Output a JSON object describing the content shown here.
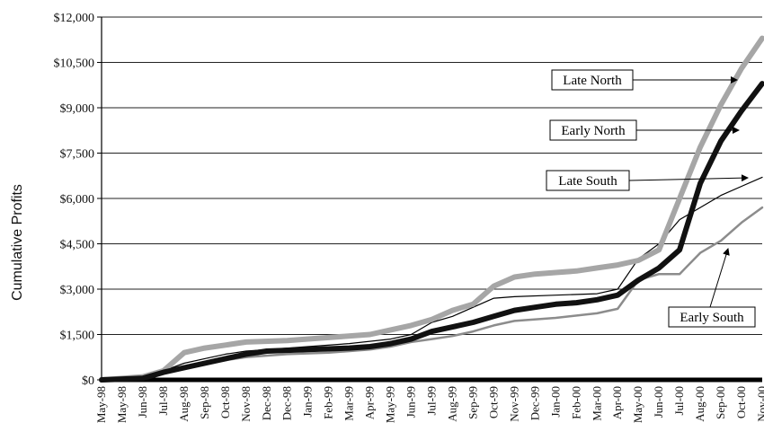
{
  "chart_data": {
    "type": "line",
    "title": "",
    "xlabel": "",
    "ylabel": "Cumulative Profits",
    "ylim": [
      0,
      12000
    ],
    "y_ticks": [
      {
        "value": 0,
        "label": "$0"
      },
      {
        "value": 1500,
        "label": "$1,500"
      },
      {
        "value": 3000,
        "label": "$3,000"
      },
      {
        "value": 4500,
        "label": "$4,500"
      },
      {
        "value": 6000,
        "label": "$6,000"
      },
      {
        "value": 7500,
        "label": "$7,500"
      },
      {
        "value": 9000,
        "label": "$9,000"
      },
      {
        "value": 10500,
        "label": "$10,500"
      },
      {
        "value": 12000,
        "label": "$12,000"
      }
    ],
    "grid": "horizontal",
    "x_ticks": [
      "May-98",
      "May-98",
      "Jun-98",
      "Jul-98",
      "Aug-98",
      "Sep-98",
      "Oct-98",
      "Nov-98",
      "Dec-98",
      "Dec-98",
      "Jan-99",
      "Feb-99",
      "Mar-99",
      "Apr-99",
      "May-99",
      "Jun-99",
      "Jul-99",
      "Aug-99",
      "Sep-99",
      "Oct-99",
      "Nov-99",
      "Dec-99",
      "Jan-00",
      "Feb-00",
      "Mar-00",
      "Apr-00",
      "May-00",
      "Jun-00",
      "Jul-00",
      "Aug-00",
      "Sep-00",
      "Oct-00",
      "Nov-00"
    ],
    "series": [
      {
        "name": "Late North",
        "color": "#a6a6a6",
        "style": "thick-gray",
        "points": [
          [
            0,
            0
          ],
          [
            2,
            100
          ],
          [
            3,
            300
          ],
          [
            4,
            900
          ],
          [
            5,
            1050
          ],
          [
            6,
            1150
          ],
          [
            7,
            1250
          ],
          [
            9,
            1300
          ],
          [
            11,
            1400
          ],
          [
            13,
            1500
          ],
          [
            14,
            1650
          ],
          [
            15,
            1800
          ],
          [
            16,
            2000
          ],
          [
            17,
            2300
          ],
          [
            18,
            2500
          ],
          [
            19,
            3100
          ],
          [
            20,
            3400
          ],
          [
            21,
            3500
          ],
          [
            22,
            3550
          ],
          [
            23,
            3600
          ],
          [
            24,
            3700
          ],
          [
            25,
            3800
          ],
          [
            26,
            3950
          ],
          [
            27,
            4300
          ],
          [
            28,
            6000
          ],
          [
            29,
            7700
          ],
          [
            30,
            9100
          ],
          [
            31,
            10300
          ],
          [
            32,
            11300
          ]
        ]
      },
      {
        "name": "Early North",
        "color": "#111111",
        "style": "thick-black",
        "points": [
          [
            0,
            0
          ],
          [
            2,
            50
          ],
          [
            3,
            250
          ],
          [
            4,
            400
          ],
          [
            5,
            550
          ],
          [
            6,
            700
          ],
          [
            7,
            850
          ],
          [
            8,
            950
          ],
          [
            10,
            1000
          ],
          [
            12,
            1050
          ],
          [
            13,
            1100
          ],
          [
            14,
            1200
          ],
          [
            15,
            1350
          ],
          [
            16,
            1600
          ],
          [
            17,
            1750
          ],
          [
            18,
            1900
          ],
          [
            19,
            2100
          ],
          [
            20,
            2300
          ],
          [
            21,
            2400
          ],
          [
            22,
            2500
          ],
          [
            23,
            2550
          ],
          [
            24,
            2650
          ],
          [
            25,
            2800
          ],
          [
            26,
            3300
          ],
          [
            27,
            3700
          ],
          [
            28,
            4300
          ],
          [
            29,
            6500
          ],
          [
            30,
            7900
          ],
          [
            31,
            8900
          ],
          [
            32,
            9800
          ]
        ]
      },
      {
        "name": "Late South",
        "color": "#000000",
        "style": "thin-black",
        "points": [
          [
            0,
            0
          ],
          [
            2,
            100
          ],
          [
            3,
            300
          ],
          [
            4,
            550
          ],
          [
            5,
            700
          ],
          [
            6,
            850
          ],
          [
            7,
            950
          ],
          [
            8,
            1000
          ],
          [
            10,
            1100
          ],
          [
            12,
            1200
          ],
          [
            14,
            1350
          ],
          [
            15,
            1500
          ],
          [
            16,
            1900
          ],
          [
            17,
            2100
          ],
          [
            18,
            2400
          ],
          [
            19,
            2700
          ],
          [
            20,
            2750
          ],
          [
            22,
            2800
          ],
          [
            24,
            2850
          ],
          [
            25,
            3000
          ],
          [
            26,
            4000
          ],
          [
            27,
            4500
          ],
          [
            28,
            5300
          ],
          [
            29,
            5700
          ],
          [
            30,
            6100
          ],
          [
            31,
            6400
          ],
          [
            32,
            6700
          ]
        ]
      },
      {
        "name": "Early South",
        "color": "#8c8c8c",
        "style": "thin-gray",
        "points": [
          [
            0,
            0
          ],
          [
            2,
            50
          ],
          [
            3,
            250
          ],
          [
            4,
            400
          ],
          [
            5,
            550
          ],
          [
            6,
            650
          ],
          [
            7,
            750
          ],
          [
            9,
            850
          ],
          [
            11,
            900
          ],
          [
            13,
            1000
          ],
          [
            14,
            1100
          ],
          [
            15,
            1250
          ],
          [
            16,
            1350
          ],
          [
            17,
            1450
          ],
          [
            18,
            1600
          ],
          [
            19,
            1800
          ],
          [
            20,
            1950
          ],
          [
            22,
            2050
          ],
          [
            24,
            2200
          ],
          [
            25,
            2350
          ],
          [
            26,
            3300
          ],
          [
            27,
            3500
          ],
          [
            28,
            3500
          ],
          [
            29,
            4200
          ],
          [
            30,
            4600
          ],
          [
            31,
            5200
          ],
          [
            32,
            5700
          ]
        ]
      }
    ],
    "annotations": [
      {
        "text": "Late North",
        "series": "Late North"
      },
      {
        "text": "Early North",
        "series": "Early North"
      },
      {
        "text": "Late South",
        "series": "Late South"
      },
      {
        "text": "Early South",
        "series": "Early South"
      }
    ]
  }
}
